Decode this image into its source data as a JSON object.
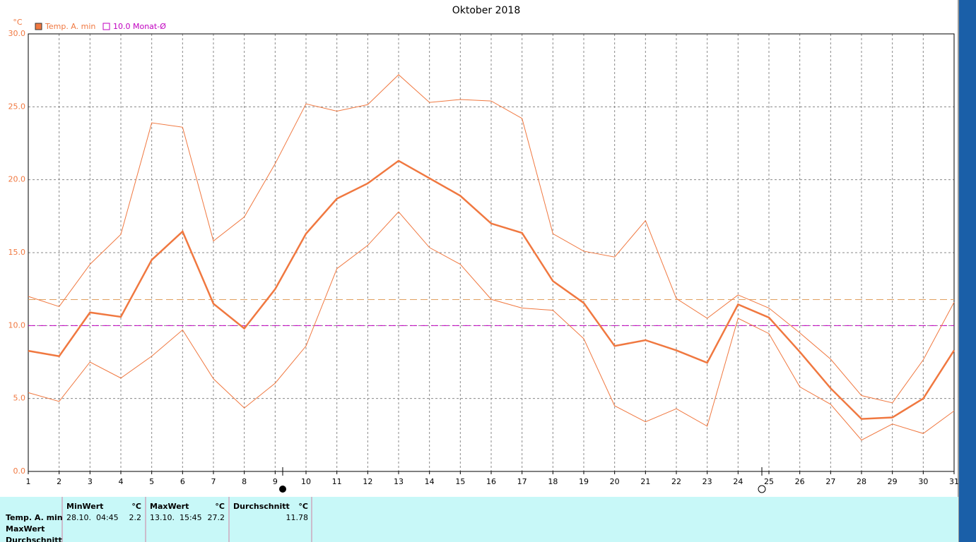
{
  "chart_data": {
    "type": "line",
    "title": "Oktober 2018",
    "y_unit": "°C",
    "x": [
      1,
      2,
      3,
      4,
      5,
      6,
      7,
      8,
      9,
      10,
      11,
      12,
      13,
      14,
      15,
      16,
      17,
      18,
      19,
      20,
      21,
      22,
      23,
      24,
      25,
      26,
      27,
      28,
      29,
      30,
      31
    ],
    "xlim": [
      1,
      31
    ],
    "xticks": [
      1,
      2,
      3,
      4,
      5,
      6,
      7,
      8,
      9,
      10,
      11,
      12,
      13,
      14,
      15,
      16,
      17,
      18,
      19,
      20,
      21,
      22,
      23,
      24,
      25,
      26,
      27,
      28,
      29,
      30,
      31
    ],
    "ylim": [
      0,
      30
    ],
    "yticks": [
      {
        "value": 0,
        "label": "0.0"
      },
      {
        "value": 5,
        "label": "5.0"
      },
      {
        "value": 10,
        "label": "10.0"
      },
      {
        "value": 15,
        "label": "15.0"
      },
      {
        "value": 20,
        "label": "20.0"
      },
      {
        "value": 25,
        "label": "25.0"
      },
      {
        "value": 30,
        "label": "30.0"
      }
    ],
    "grid": true,
    "series": [
      {
        "name": "Temp. A. min",
        "color": "#f07840",
        "values": [
          8.27,
          7.9,
          10.9,
          10.6,
          14.5,
          16.45,
          11.5,
          9.8,
          12.5,
          16.3,
          18.7,
          19.75,
          21.3,
          20.1,
          18.9,
          17.0,
          16.35,
          13.05,
          11.55,
          8.6,
          9.0,
          8.3,
          7.45,
          11.45,
          10.55,
          8.2,
          5.7,
          3.6,
          3.7,
          5.0,
          8.3
        ],
        "upper": [
          12.0,
          11.3,
          14.2,
          16.25,
          23.9,
          23.6,
          15.8,
          17.45,
          21.1,
          25.2,
          24.7,
          25.15,
          27.2,
          25.3,
          25.5,
          25.4,
          24.2,
          16.3,
          15.1,
          14.7,
          17.2,
          11.85,
          10.5,
          12.1,
          11.2,
          9.5,
          7.7,
          5.2,
          4.7,
          7.65,
          11.6
        ],
        "lower": [
          5.4,
          4.8,
          7.5,
          6.4,
          7.9,
          9.7,
          6.35,
          4.35,
          6.05,
          8.6,
          13.9,
          15.5,
          17.8,
          15.35,
          14.2,
          11.8,
          11.2,
          11.05,
          9.1,
          4.5,
          3.4,
          4.3,
          3.1,
          10.5,
          9.45,
          5.8,
          4.6,
          2.15,
          3.25,
          2.6,
          4.15
        ]
      }
    ],
    "reference_lines": [
      {
        "value": 10,
        "label": "10.0 Monat-Ø",
        "color": "#c000c0"
      }
    ],
    "summary": {
      "row_labels": [
        "Temp. A. min",
        "MaxWert",
        "Durchschnitt"
      ],
      "columns": [
        {
          "header": "MinWert",
          "unit": "°C",
          "time": "28.10.  04:45",
          "value": 2.2
        },
        {
          "header": "MaxWert",
          "unit": "°C",
          "time": "13.10.  15:45",
          "value": 27.2
        },
        {
          "header": "Durchschnitt",
          "unit": "°C",
          "value": 11.78
        }
      ]
    }
  }
}
